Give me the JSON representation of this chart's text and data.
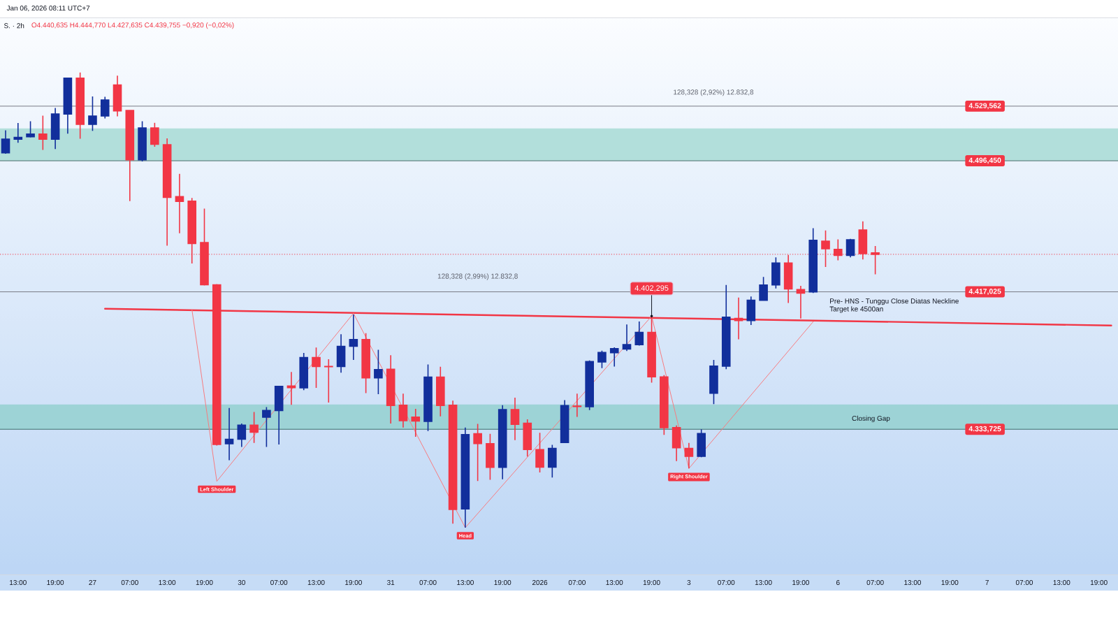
{
  "chart_data": {
    "type": "candlestick",
    "title": "Jan 06, 2026 08:11 UTC+7",
    "subtitle": "S. · 2h",
    "categories": [
      null,
      "13:00",
      null,
      null,
      "19:00",
      null,
      null,
      "27",
      null,
      null,
      "07:00",
      null,
      null,
      "13:00",
      null,
      null,
      "19:00",
      null,
      null,
      "30",
      null,
      null,
      "07:00",
      null,
      null,
      "13:00",
      null,
      null,
      "19:00",
      null,
      null,
      "31",
      null,
      null,
      "07:00",
      null,
      null,
      "13:00",
      null,
      null,
      "19:00",
      null,
      null,
      "2026",
      null,
      null,
      "07:00",
      null,
      null,
      "13:00",
      null,
      null,
      "19:00",
      null,
      null,
      "3",
      null,
      null,
      "07:00",
      null,
      null,
      "13:00",
      null,
      null,
      "19:00",
      null,
      null,
      "6",
      null,
      null,
      "07:00",
      null,
      null,
      "13:00",
      null,
      null,
      "19:00",
      null,
      null,
      "7",
      null,
      null,
      "07:00",
      null,
      null,
      "13:00",
      null,
      null,
      "19:00",
      null
    ],
    "ohlc": [
      [
        4501.3,
        4514.9,
        4500.7,
        4509.6
      ],
      [
        4509.5,
        4519.3,
        4507.4,
        4510.6
      ],
      [
        4511.0,
        4520.4,
        4510.6,
        4512.7
      ],
      [
        4512.7,
        4523.8,
        4503.0,
        4509.5
      ],
      [
        4509.5,
        4528.5,
        4503.6,
        4524.8
      ],
      [
        4524.8,
        4546.9,
        4512.9,
        4546.5
      ],
      [
        4546.5,
        4549.9,
        4509.8,
        4518.5
      ],
      [
        4518.5,
        4535.4,
        4514.6,
        4523.6
      ],
      [
        4523.6,
        4535.2,
        4522.1,
        4533.3
      ],
      [
        4542.4,
        4548.0,
        4523.4,
        4526.7
      ],
      [
        4527.0,
        4527.2,
        4472.0,
        4497.0
      ],
      [
        4497.0,
        4520.4,
        4496.0,
        4516.4
      ],
      [
        4516.4,
        4519.5,
        4504.9,
        4506.4
      ],
      [
        4506.2,
        4510.0,
        4445.0,
        4474.3
      ],
      [
        4474.7,
        4488.5,
        4452.5,
        4471.8
      ],
      [
        4472.0,
        4473.9,
        4434.2,
        4446.3
      ],
      [
        4446.9,
        4467.5,
        4420.9,
        4421.3
      ],
      [
        4421.3,
        4421.7,
        4323.9,
        4324.5
      ],
      [
        4324.9,
        4346.6,
        4315.0,
        4327.7
      ],
      [
        4327.7,
        4337.2,
        4323.0,
        4336.2
      ],
      [
        4336.2,
        4344.2,
        4325.4,
        4331.9
      ],
      [
        4341.0,
        4347.2,
        4323.0,
        4345.1
      ],
      [
        4345.1,
        4360.1,
        4324.5,
        4359.7
      ],
      [
        4359.9,
        4368.4,
        4348.5,
        4358.9
      ],
      [
        4358.8,
        4380.0,
        4357.4,
        4377.2
      ],
      [
        4377.2,
        4383.3,
        4358.8,
        4371.8
      ],
      [
        4371.8,
        4376.2,
        4349.9,
        4371.6
      ],
      [
        4371.8,
        4391.3,
        4368.0,
        4384.0
      ],
      [
        4384.0,
        4403.3,
        4375.8,
        4388.1
      ],
      [
        4388.1,
        4392.0,
        4355.6,
        4364.9
      ],
      [
        4364.9,
        4381.9,
        4355.0,
        4369.9
      ],
      [
        4370.1,
        4378.6,
        4337.2,
        4348.1
      ],
      [
        4348.3,
        4355.3,
        4334.8,
        4338.9
      ],
      [
        4341.1,
        4346.1,
        4329.2,
        4338.7
      ],
      [
        4338.5,
        4373.0,
        4332.7,
        4365.3
      ],
      [
        4365.3,
        4371.6,
        4341.5,
        4348.1
      ],
      [
        4348.3,
        4351.1,
        4276.5,
        4285.1
      ],
      [
        4285.4,
        4334.8,
        4274.1,
        4330.5
      ],
      [
        4331.0,
        4337.0,
        4302.4,
        4325.0
      ],
      [
        4325.0,
        4331.0,
        4303.1,
        4310.6
      ],
      [
        4310.6,
        4348.3,
        4303.4,
        4345.7
      ],
      [
        4345.7,
        4352.9,
        4327.1,
        4336.7
      ],
      [
        4337.4,
        4339.8,
        4317.2,
        4321.4
      ],
      [
        4321.4,
        4331.6,
        4307.6,
        4310.8
      ],
      [
        4310.8,
        4324.3,
        4304.5,
        4322.1
      ],
      [
        4325.7,
        4351.4,
        4325.4,
        4348.1
      ],
      [
        4347.8,
        4355.3,
        4341.2,
        4347.5
      ],
      [
        4347.4,
        4375.4,
        4345.4,
        4374.8
      ],
      [
        4374.5,
        4381.4,
        4370.8,
        4380.3
      ],
      [
        4380.1,
        4383.4,
        4371.7,
        4382.6
      ],
      [
        4382.3,
        4397.3,
        4381.1,
        4385.0
      ],
      [
        4385.0,
        4399.0,
        4384.4,
        4392.5
      ],
      [
        4392.5,
        4402.3,
        4362.0,
        4365.5
      ],
      [
        4365.5,
        4366.5,
        4330.3,
        4334.7
      ],
      [
        4334.7,
        4336.0,
        4314.4,
        4322.5
      ],
      [
        4322.2,
        4325.5,
        4310.0,
        4317.3
      ],
      [
        4317.3,
        4333.7,
        4316.8,
        4331.1
      ],
      [
        4355.5,
        4375.8,
        4349.0,
        4372.0
      ],
      [
        4372.0,
        4421.2,
        4370.1,
        4401.7
      ],
      [
        4400.9,
        4413.6,
        4388.3,
        4399.6
      ],
      [
        4399.6,
        4414.2,
        4396.9,
        4411.9
      ],
      [
        4411.9,
        4426.1,
        4411.5,
        4421.2
      ],
      [
        4421.2,
        4437.9,
        4419.1,
        4434.5
      ],
      [
        4434.5,
        4439.4,
        4410.3,
        4418.8
      ],
      [
        4418.4,
        4420.7,
        4400.9,
        4416.2
      ],
      [
        4417.0,
        4455.6,
        4416.3,
        4448.3
      ],
      [
        4447.7,
        4454.2,
        4432.1,
        4443.1
      ],
      [
        4442.8,
        4448.8,
        4436.1,
        4439.1
      ],
      [
        4439.1,
        4449.1,
        4437.9,
        4448.6
      ],
      [
        4454.5,
        4459.7,
        4436.6,
        4440.2
      ],
      [
        4440.635,
        4444.77,
        4427.635,
        4439.755
      ],
      null,
      null,
      null,
      null,
      null,
      null,
      null,
      null,
      null,
      null,
      null,
      null,
      null,
      null,
      null,
      null,
      null,
      null,
      null
    ],
    "colors": [
      "#122f9c",
      "#122f9c",
      "#122f9c",
      "#f23645",
      "#122f9c",
      "#122f9c",
      "#f23645",
      "#122f9c",
      "#122f9c",
      "#f23645",
      "#f23645",
      "#122f9c",
      "#f23645",
      "#f23645",
      "#f23645",
      "#f23645",
      "#f23645",
      "#f23645",
      "#122f9c",
      "#122f9c",
      "#f23645",
      "#122f9c",
      "#122f9c",
      "#f23645",
      "#122f9c",
      "#f23645",
      "#f23645",
      "#122f9c",
      "#122f9c",
      "#f23645",
      "#122f9c",
      "#f23645",
      "#f23645",
      "#f23645",
      "#122f9c",
      "#f23645",
      "#f23645",
      "#122f9c",
      "#f23645",
      "#f23645",
      "#122f9c",
      "#f23645",
      "#f23645",
      "#f23645",
      "#122f9c",
      "#122f9c",
      "#f23645",
      "#122f9c",
      "#122f9c",
      "#122f9c",
      "#122f9c",
      "#122f9c",
      "#f23645",
      "#f23645",
      "#f23645",
      "#f23645",
      "#122f9c",
      "#122f9c",
      "#122f9c",
      "#f23645",
      "#122f9c",
      "#122f9c",
      "#122f9c",
      "#f23645",
      "#f23645",
      "#122f9c",
      "#f23645",
      "#f23645",
      "#122f9c",
      "#f23645",
      "#f23645",
      null,
      null,
      null,
      null,
      null,
      null,
      null,
      null,
      null,
      null,
      null,
      null,
      null,
      null,
      null,
      null,
      null,
      null,
      null
    ],
    "ylim": [
      4245.5,
      4583.1
    ],
    "tick_labels": "x",
    "series": [
      {
        "type": "line",
        "color": "#f23645",
        "values": [
          null,
          null,
          null,
          null,
          null,
          null,
          null,
          null,
          4406.8,
          null,
          null,
          null,
          null,
          null,
          null,
          null,
          null,
          null,
          null,
          null,
          null,
          null,
          null,
          null,
          null,
          null,
          null,
          null,
          null,
          null,
          null,
          null,
          null,
          null,
          null,
          null,
          null,
          null,
          null,
          null,
          null,
          null,
          null,
          null,
          null,
          null,
          null,
          null,
          null,
          null,
          null,
          null,
          null,
          null,
          null,
          null,
          null,
          null,
          null,
          null,
          null,
          null,
          null,
          null,
          null,
          null,
          null,
          null,
          null,
          null,
          null,
          null,
          null,
          null,
          null,
          null,
          null,
          null,
          null,
          null,
          null,
          null,
          null,
          null,
          null,
          null,
          null,
          null,
          null,
          4396.6
        ]
      },
      {
        "type": "line",
        "color": "#f77c80",
        "values": [
          null,
          null,
          null,
          null,
          null,
          null,
          null,
          null,
          null,
          null,
          null,
          null,
          null,
          null,
          null,
          4406.2,
          null,
          4302.2,
          null,
          null,
          null,
          null,
          null,
          null,
          null,
          null,
          null,
          null,
          4404.0,
          null,
          null,
          null,
          null,
          null,
          null,
          null,
          null,
          4274.1,
          null,
          null,
          null,
          null,
          null,
          null,
          null,
          null,
          null,
          null,
          null,
          null,
          null,
          null,
          4402.3,
          null,
          null,
          4310.0,
          null,
          null,
          null,
          null,
          null,
          null,
          null,
          null,
          null,
          4398.9,
          null,
          null,
          null,
          null,
          null,
          null,
          null,
          null,
          null,
          null,
          null,
          null,
          null,
          null,
          null,
          null,
          null,
          null,
          null,
          null,
          null,
          null,
          null,
          null
        ]
      }
    ],
    "bands": [
      {
        "axis": "y",
        "from": 4496.45,
        "to": 4516.1,
        "color": "#b2dfdb"
      },
      {
        "axis": "y",
        "from": 4333.725,
        "to": 4348.8,
        "label": "Closing Gap",
        "color": "#9dd3d6"
      }
    ],
    "ref_lines": [
      {
        "axis": "y",
        "value": 4529.562,
        "label": "4.529,562",
        "color": "#787b86"
      },
      {
        "axis": "y",
        "value": 4496.45,
        "label": "4.496,450",
        "color": "#4b6e6c"
      },
      {
        "axis": "y",
        "value": 4417.025,
        "label": "4.417,025",
        "color": "#787b86"
      },
      {
        "axis": "y",
        "value": 4333.725,
        "label": "4.333,725",
        "color": "#3f6f6e"
      },
      {
        "axis": "y",
        "value": 4439.755,
        "color": "#f23645",
        "line_style": "dotted"
      }
    ],
    "annotations": [
      {
        "text": "Left Shoulder",
        "y": 4302.2
      },
      {
        "text": "Head",
        "y": 4274.1
      },
      {
        "text": "Right Shoulder",
        "y": 4310.0
      },
      {
        "text": "4.402,295",
        "y": 4402.295
      },
      "128,328 (2,99%) 12.832,8",
      "128,328 (2,92%) 12.832,8",
      "Pre- HNS - Tunggu Close Diatas Neckline",
      "Target ke 4500an",
      "O4.440,635 H4.444,770 L4.427,635 C4.439,755 −0,920 (−0,02%)"
    ]
  }
}
